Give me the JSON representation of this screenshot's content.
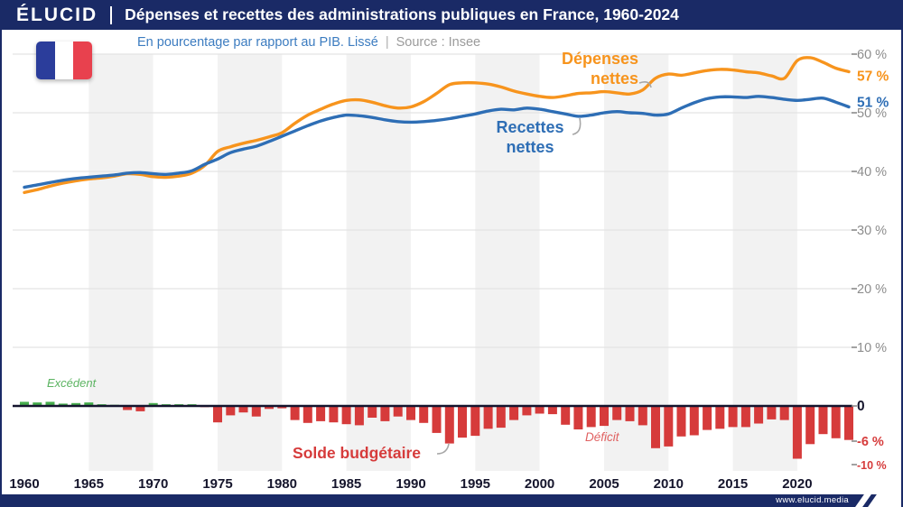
{
  "header": {
    "logo": "ÉLUCID",
    "title": "Dépenses et recettes des administrations publiques en France, 1960-2024"
  },
  "subtitle": {
    "text": "En pourcentage par rapport au PIB. Lissé",
    "divider": "|",
    "source": "Source : Insee"
  },
  "footer": {
    "url": "www.elucid.media"
  },
  "chart_data": {
    "type": "line",
    "title": "Dépenses et recettes des administrations publiques en France, 1960-2024",
    "subtitle": "En pourcentage par rapport au PIB. Lissé",
    "source": "Source : Insee",
    "ylim": [
      -10,
      60
    ],
    "x_range": [
      1960,
      2024
    ],
    "x": [
      1960,
      1961,
      1962,
      1963,
      1964,
      1965,
      1966,
      1967,
      1968,
      1969,
      1970,
      1971,
      1972,
      1973,
      1974,
      1975,
      1976,
      1977,
      1978,
      1979,
      1980,
      1981,
      1982,
      1983,
      1984,
      1985,
      1986,
      1987,
      1988,
      1989,
      1990,
      1991,
      1992,
      1993,
      1994,
      1995,
      1996,
      1997,
      1998,
      1999,
      2000,
      2001,
      2002,
      2003,
      2004,
      2005,
      2006,
      2007,
      2008,
      2009,
      2010,
      2011,
      2012,
      2013,
      2014,
      2015,
      2016,
      2017,
      2018,
      2019,
      2020,
      2021,
      2022,
      2023,
      2024
    ],
    "series": [
      {
        "name": "Dépenses nettes",
        "color": "#f7941d",
        "end_label": "57 %",
        "values": [
          36.4,
          36.9,
          37.5,
          38.0,
          38.4,
          38.7,
          38.9,
          39.2,
          39.6,
          39.5,
          39.1,
          39.0,
          39.2,
          39.7,
          41.0,
          43.4,
          44.2,
          44.8,
          45.3,
          45.9,
          46.6,
          48.2,
          49.6,
          50.6,
          51.5,
          52.1,
          52.2,
          51.8,
          51.2,
          50.8,
          51.0,
          51.9,
          53.3,
          54.8,
          55.1,
          55.1,
          54.9,
          54.4,
          53.7,
          53.2,
          52.8,
          52.6,
          52.9,
          53.3,
          53.4,
          53.6,
          53.4,
          53.2,
          53.9,
          55.9,
          56.6,
          56.4,
          56.8,
          57.2,
          57.4,
          57.3,
          57.0,
          56.8,
          56.3,
          55.9,
          58.9,
          59.4,
          58.6,
          57.6,
          57.0
        ]
      },
      {
        "name": "Recettes nettes",
        "color": "#2e6eb5",
        "end_label": "51 %",
        "values": [
          37.3,
          37.7,
          38.1,
          38.5,
          38.8,
          39.0,
          39.2,
          39.4,
          39.7,
          39.8,
          39.6,
          39.5,
          39.7,
          40.1,
          41.2,
          42.1,
          43.2,
          43.8,
          44.3,
          45.1,
          46.0,
          46.9,
          47.8,
          48.6,
          49.2,
          49.6,
          49.5,
          49.2,
          48.8,
          48.5,
          48.4,
          48.5,
          48.7,
          49.0,
          49.4,
          49.8,
          50.3,
          50.6,
          50.5,
          50.8,
          50.6,
          50.2,
          49.8,
          49.4,
          49.6,
          50.0,
          50.2,
          50.0,
          49.9,
          49.6,
          49.8,
          50.8,
          51.7,
          52.4,
          52.7,
          52.7,
          52.6,
          52.8,
          52.6,
          52.3,
          52.1,
          52.3,
          52.5,
          51.8,
          51.0
        ]
      }
    ],
    "balance": {
      "name": "Solde budgétaire",
      "type": "bar",
      "values": [
        0.7,
        0.6,
        0.7,
        0.4,
        0.5,
        0.6,
        0.3,
        0.2,
        -0.7,
        -0.9,
        0.5,
        0.3,
        0.3,
        0.3,
        -0.2,
        -2.8,
        -1.6,
        -1.1,
        -1.8,
        -0.5,
        -0.4,
        -2.4,
        -2.9,
        -2.6,
        -2.8,
        -3.1,
        -3.3,
        -2.0,
        -2.6,
        -1.8,
        -2.4,
        -2.9,
        -4.6,
        -6.4,
        -5.4,
        -5.1,
        -3.9,
        -3.7,
        -2.4,
        -1.6,
        -1.3,
        -1.4,
        -3.2,
        -4.0,
        -3.6,
        -3.4,
        -2.4,
        -2.6,
        -3.3,
        -7.2,
        -6.9,
        -5.2,
        -5.0,
        -4.1,
        -3.9,
        -3.6,
        -3.6,
        -3.0,
        -2.3,
        -2.4,
        -9.0,
        -6.5,
        -4.8,
        -5.5,
        -5.8
      ]
    },
    "y_axis": {
      "grid_values": [
        10,
        20,
        30,
        40,
        50,
        60
      ],
      "ticks": [
        {
          "label": "60 %",
          "value": 60,
          "style": "muted"
        },
        {
          "label": "57 %",
          "value": 57,
          "style": "expenses"
        },
        {
          "label": "51 %",
          "value": 51,
          "style": "revenues"
        },
        {
          "label": "50 %",
          "value": 50,
          "style": "muted"
        },
        {
          "label": "40 %",
          "value": 40,
          "style": "muted"
        },
        {
          "label": "30 %",
          "value": 30,
          "style": "muted"
        },
        {
          "label": "20 %",
          "value": 20,
          "style": "muted"
        },
        {
          "label": "10 %",
          "value": 10,
          "style": "muted"
        },
        {
          "label": "0",
          "value": 0,
          "style": "zero"
        },
        {
          "label": "-6 %",
          "value": -6,
          "style": "deficit"
        },
        {
          "label": "-10 %",
          "value": -10,
          "style": "deficit-small"
        }
      ]
    },
    "x_axis": {
      "ticks": [
        "1960",
        "1965",
        "1970",
        "1975",
        "1980",
        "1985",
        "1990",
        "1995",
        "2000",
        "2005",
        "2010",
        "2015",
        "2020"
      ]
    },
    "annotations": {
      "expenses_label": "Dépenses\nnettes",
      "revenues_label": "Recettes\nnettes",
      "surplus_label": "Excédent",
      "deficit_label": "Déficit",
      "balance_label": "Solde budgétaire"
    },
    "colors": {
      "band": "#f2f2f2",
      "expenses": "#f7941d",
      "revenues": "#2e6eb5",
      "deficit": "#d63b3b",
      "surplus": "#46ad4d"
    },
    "legend_position": "inline-labels",
    "grid": true
  }
}
